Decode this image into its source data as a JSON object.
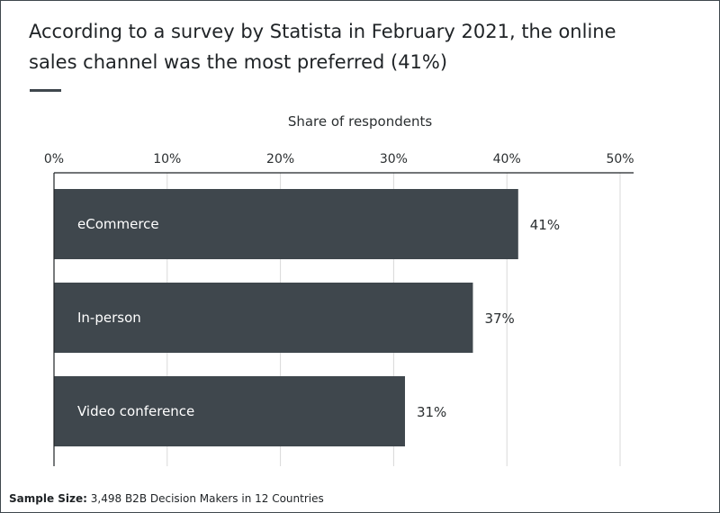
{
  "header": {
    "title": "According to a survey by Statista in February 2021, the online sales channel was the most preferred (41%)"
  },
  "footnote": {
    "label": "Sample Size:",
    "text": "3,498 B2B Decision Makers in 12 Countries"
  },
  "colors": {
    "bar": "#3f474d",
    "grid": "#d9d9d9",
    "axis": "#1f2326"
  },
  "chart_data": {
    "type": "bar",
    "orientation": "horizontal",
    "title": "According to a survey by Statista in February 2021, the online sales channel was the most preferred (41%)",
    "xlabel": "Share of respondents",
    "ylabel": "",
    "categories": [
      "eCommerce",
      "In-person",
      "Video conference"
    ],
    "values": [
      41,
      37,
      31
    ],
    "value_labels": [
      "41%",
      "37%",
      "31%"
    ],
    "xlim": [
      0,
      50
    ],
    "ticks": [
      0,
      10,
      20,
      30,
      40,
      50
    ],
    "tick_labels": [
      "0%",
      "10%",
      "20%",
      "30%",
      "40%",
      "50%"
    ],
    "grid": true,
    "legend": "none"
  }
}
